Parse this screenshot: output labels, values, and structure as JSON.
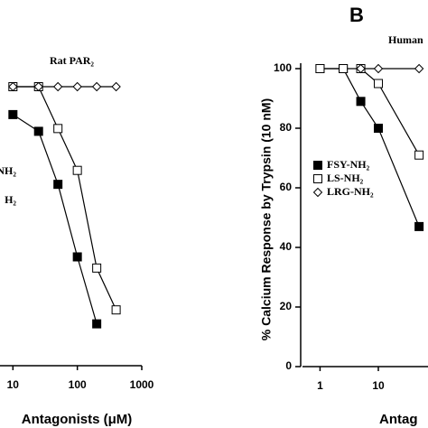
{
  "chart_data": [
    {
      "type": "line",
      "title": "Rat PAR₂",
      "x_label": "Antagonists (μM)",
      "xscale": "log",
      "x": [
        10,
        25,
        50,
        100,
        200,
        400
      ],
      "xlim": [
        6.3,
        1000
      ],
      "xticks": [
        10,
        100,
        1000
      ],
      "ylim": [
        0,
        100
      ],
      "legend_labels": [
        "NH₂",
        "H₂"
      ],
      "series": [
        {
          "marker": "filled-square",
          "color": "#000000",
          "values": [
            90,
            84,
            65,
            39,
            15,
            null
          ]
        },
        {
          "marker": "open-square",
          "color": "#000000",
          "values": [
            100,
            100,
            85,
            70,
            35,
            20
          ]
        },
        {
          "marker": "open-diamond",
          "color": "#000000",
          "values": [
            100,
            100,
            100,
            100,
            100,
            100
          ]
        }
      ]
    },
    {
      "type": "line",
      "panel_label": "B",
      "title": "Human",
      "x_label": "Antag",
      "y_label": "% Calcium Response by Trypsin (10 nM)",
      "xscale": "log",
      "x": [
        1,
        2.5,
        5,
        10,
        50
      ],
      "xlim": [
        0.5,
        200
      ],
      "xticks": [
        1,
        10
      ],
      "ylim": [
        0,
        100
      ],
      "yticks": [
        0,
        20,
        40,
        60,
        80,
        100
      ],
      "series": [
        {
          "name": "FSY-NH₂",
          "marker": "filled-square",
          "color": "#000000",
          "values": [
            100,
            100,
            89,
            80,
            47
          ]
        },
        {
          "name": "LS-NH₂",
          "marker": "open-square",
          "color": "#000000",
          "values": [
            100,
            100,
            100,
            95,
            71
          ]
        },
        {
          "name": "LRG-NH₂",
          "marker": "open-diamond",
          "color": "#000000",
          "values": [
            null,
            null,
            100,
            100,
            100
          ]
        }
      ]
    }
  ]
}
